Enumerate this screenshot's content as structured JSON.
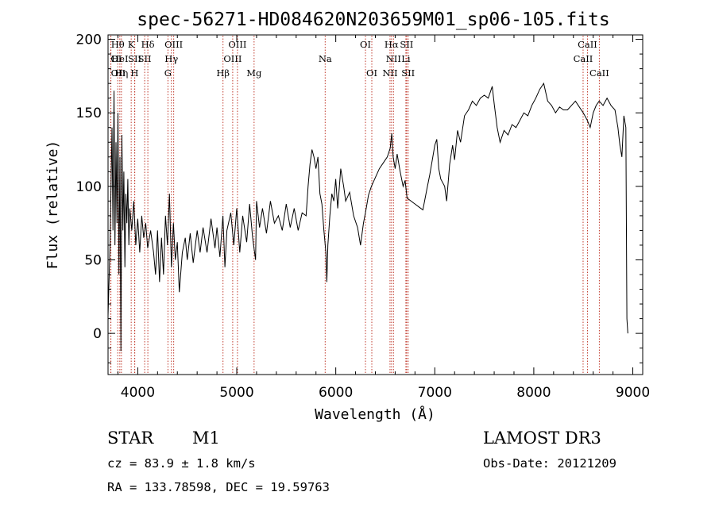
{
  "chart_data": {
    "type": "line",
    "title": "spec-56271-HD084620N203659M01_sp06-105.fits",
    "xlabel": "Wavelength (Å)",
    "ylabel": "Flux (relative)",
    "xlim": [
      3700,
      9100
    ],
    "ylim": [
      -28,
      203
    ],
    "x_ticks": [
      4000,
      5000,
      6000,
      7000,
      8000,
      9000
    ],
    "y_ticks": [
      0,
      50,
      100,
      150,
      200
    ],
    "grid": false,
    "series": [
      {
        "color": "#000000",
        "points": [
          [
            3700,
            12
          ],
          [
            3720,
            60
          ],
          [
            3740,
            140
          ],
          [
            3750,
            70
          ],
          [
            3760,
            165
          ],
          [
            3770,
            60
          ],
          [
            3780,
            130
          ],
          [
            3790,
            75
          ],
          [
            3800,
            150
          ],
          [
            3810,
            40
          ],
          [
            3820,
            120
          ],
          [
            3830,
            -12
          ],
          [
            3840,
            135
          ],
          [
            3850,
            70
          ],
          [
            3860,
            110
          ],
          [
            3870,
            45
          ],
          [
            3880,
            95
          ],
          [
            3890,
            75
          ],
          [
            3900,
            105
          ],
          [
            3910,
            60
          ],
          [
            3920,
            85
          ],
          [
            3940,
            70
          ],
          [
            3960,
            90
          ],
          [
            3980,
            60
          ],
          [
            4000,
            78
          ],
          [
            4020,
            55
          ],
          [
            4040,
            80
          ],
          [
            4060,
            65
          ],
          [
            4080,
            75
          ],
          [
            4100,
            58
          ],
          [
            4130,
            70
          ],
          [
            4160,
            55
          ],
          [
            4180,
            40
          ],
          [
            4200,
            70
          ],
          [
            4220,
            35
          ],
          [
            4240,
            65
          ],
          [
            4260,
            40
          ],
          [
            4280,
            80
          ],
          [
            4300,
            60
          ],
          [
            4320,
            95
          ],
          [
            4340,
            45
          ],
          [
            4360,
            75
          ],
          [
            4380,
            50
          ],
          [
            4400,
            62
          ],
          [
            4420,
            28
          ],
          [
            4450,
            55
          ],
          [
            4480,
            65
          ],
          [
            4500,
            50
          ],
          [
            4530,
            68
          ],
          [
            4560,
            48
          ],
          [
            4600,
            70
          ],
          [
            4630,
            55
          ],
          [
            4660,
            72
          ],
          [
            4700,
            55
          ],
          [
            4740,
            78
          ],
          [
            4780,
            58
          ],
          [
            4800,
            72
          ],
          [
            4830,
            52
          ],
          [
            4860,
            80
          ],
          [
            4880,
            45
          ],
          [
            4900,
            70
          ],
          [
            4940,
            82
          ],
          [
            4970,
            60
          ],
          [
            5000,
            85
          ],
          [
            5030,
            55
          ],
          [
            5060,
            80
          ],
          [
            5100,
            62
          ],
          [
            5130,
            88
          ],
          [
            5160,
            65
          ],
          [
            5190,
            50
          ],
          [
            5200,
            90
          ],
          [
            5230,
            72
          ],
          [
            5260,
            85
          ],
          [
            5300,
            68
          ],
          [
            5340,
            90
          ],
          [
            5380,
            75
          ],
          [
            5420,
            80
          ],
          [
            5460,
            70
          ],
          [
            5500,
            88
          ],
          [
            5540,
            72
          ],
          [
            5580,
            85
          ],
          [
            5620,
            70
          ],
          [
            5660,
            82
          ],
          [
            5700,
            80
          ],
          [
            5720,
            100
          ],
          [
            5740,
            115
          ],
          [
            5760,
            125
          ],
          [
            5780,
            120
          ],
          [
            5800,
            112
          ],
          [
            5820,
            120
          ],
          [
            5840,
            95
          ],
          [
            5860,
            88
          ],
          [
            5880,
            70
          ],
          [
            5900,
            55
          ],
          [
            5910,
            35
          ],
          [
            5920,
            60
          ],
          [
            5940,
            80
          ],
          [
            5960,
            95
          ],
          [
            5980,
            90
          ],
          [
            6000,
            105
          ],
          [
            6020,
            85
          ],
          [
            6050,
            112
          ],
          [
            6080,
            100
          ],
          [
            6100,
            90
          ],
          [
            6140,
            96
          ],
          [
            6180,
            80
          ],
          [
            6220,
            72
          ],
          [
            6250,
            60
          ],
          [
            6280,
            75
          ],
          [
            6300,
            82
          ],
          [
            6330,
            94
          ],
          [
            6360,
            100
          ],
          [
            6400,
            106
          ],
          [
            6440,
            112
          ],
          [
            6480,
            116
          ],
          [
            6520,
            120
          ],
          [
            6550,
            126
          ],
          [
            6565,
            136
          ],
          [
            6580,
            120
          ],
          [
            6600,
            112
          ],
          [
            6620,
            122
          ],
          [
            6650,
            110
          ],
          [
            6680,
            100
          ],
          [
            6700,
            104
          ],
          [
            6720,
            92
          ],
          [
            6760,
            90
          ],
          [
            6800,
            88
          ],
          [
            6840,
            86
          ],
          [
            6880,
            84
          ],
          [
            6920,
            98
          ],
          [
            6950,
            108
          ],
          [
            6980,
            120
          ],
          [
            7000,
            128
          ],
          [
            7020,
            132
          ],
          [
            7040,
            112
          ],
          [
            7060,
            105
          ],
          [
            7100,
            100
          ],
          [
            7120,
            90
          ],
          [
            7150,
            115
          ],
          [
            7180,
            128
          ],
          [
            7200,
            118
          ],
          [
            7230,
            138
          ],
          [
            7260,
            130
          ],
          [
            7300,
            148
          ],
          [
            7340,
            152
          ],
          [
            7380,
            158
          ],
          [
            7420,
            155
          ],
          [
            7460,
            160
          ],
          [
            7500,
            162
          ],
          [
            7540,
            160
          ],
          [
            7580,
            168
          ],
          [
            7600,
            156
          ],
          [
            7630,
            140
          ],
          [
            7660,
            130
          ],
          [
            7700,
            138
          ],
          [
            7740,
            135
          ],
          [
            7780,
            142
          ],
          [
            7820,
            140
          ],
          [
            7860,
            145
          ],
          [
            7900,
            150
          ],
          [
            7940,
            148
          ],
          [
            7980,
            155
          ],
          [
            8020,
            160
          ],
          [
            8060,
            166
          ],
          [
            8100,
            170
          ],
          [
            8140,
            158
          ],
          [
            8180,
            155
          ],
          [
            8220,
            150
          ],
          [
            8260,
            154
          ],
          [
            8300,
            152
          ],
          [
            8340,
            152
          ],
          [
            8380,
            155
          ],
          [
            8420,
            158
          ],
          [
            8460,
            154
          ],
          [
            8500,
            150
          ],
          [
            8540,
            145
          ],
          [
            8570,
            140
          ],
          [
            8600,
            150
          ],
          [
            8630,
            155
          ],
          [
            8660,
            158
          ],
          [
            8700,
            155
          ],
          [
            8740,
            160
          ],
          [
            8780,
            155
          ],
          [
            8820,
            152
          ],
          [
            8850,
            140
          ],
          [
            8870,
            128
          ],
          [
            8890,
            120
          ],
          [
            8910,
            148
          ],
          [
            8930,
            140
          ],
          [
            8940,
            10
          ],
          [
            8950,
            0
          ]
        ]
      }
    ]
  },
  "lines": [
    {
      "label": "OI",
      "x": 3727,
      "row": 2,
      "align": "start"
    },
    {
      "label": "OII",
      "x": 3729,
      "row": 3,
      "align": "start"
    },
    {
      "label": "Hθ",
      "x": 3798,
      "row": 1,
      "align": "middle"
    },
    {
      "label": "HeI",
      "x": 3819,
      "row": 2,
      "align": "middle"
    },
    {
      "label": "Hη",
      "x": 3835,
      "row": 3,
      "align": "middle"
    },
    {
      "label": "K",
      "x": 3934,
      "row": 1,
      "align": "middle"
    },
    {
      "label": "SII",
      "x": 3970,
      "row": 2,
      "align": "middle"
    },
    {
      "label": "H",
      "x": 3968,
      "row": 3,
      "align": "middle"
    },
    {
      "label": "Hδ",
      "x": 4102,
      "row": 1,
      "align": "middle"
    },
    {
      "label": "SII",
      "x": 4070,
      "row": 2,
      "align": "middle"
    },
    {
      "label": "OIII",
      "x": 4363,
      "row": 1,
      "align": "middle"
    },
    {
      "label": "Hγ",
      "x": 4340,
      "row": 2,
      "align": "middle"
    },
    {
      "label": "G",
      "x": 4305,
      "row": 3,
      "align": "middle"
    },
    {
      "label": "Hβ",
      "x": 4861,
      "row": 3,
      "align": "middle"
    },
    {
      "label": "OIII",
      "x": 5007,
      "row": 1,
      "align": "middle"
    },
    {
      "label": "OIII",
      "x": 4959,
      "row": 2,
      "align": "middle"
    },
    {
      "label": "Mg",
      "x": 5175,
      "row": 3,
      "align": "middle"
    },
    {
      "label": "Na",
      "x": 5893,
      "row": 2,
      "align": "middle"
    },
    {
      "label": "OI",
      "x": 6300,
      "row": 1,
      "align": "middle"
    },
    {
      "label": "OI",
      "x": 6364,
      "row": 3,
      "align": "middle"
    },
    {
      "label": "Hα",
      "x": 6563,
      "row": 1,
      "align": "middle"
    },
    {
      "label": "SII",
      "x": 6716,
      "row": 1,
      "align": "middle"
    },
    {
      "label": "NII",
      "x": 6583,
      "row": 2,
      "align": "middle"
    },
    {
      "label": "Li",
      "x": 6708,
      "row": 2,
      "align": "middle"
    },
    {
      "label": "NII",
      "x": 6548,
      "row": 3,
      "align": "middle"
    },
    {
      "label": "SII",
      "x": 6731,
      "row": 3,
      "align": "middle"
    },
    {
      "label": "CaII",
      "x": 8542,
      "row": 1,
      "align": "middle"
    },
    {
      "label": "CaII",
      "x": 8498,
      "row": 2,
      "align": "middle"
    },
    {
      "label": "CaII",
      "x": 8662,
      "row": 3,
      "align": "middle"
    }
  ],
  "info": {
    "object_class": "STAR",
    "subclass": "M1",
    "survey": "LAMOST DR3",
    "cz": "cz = 83.9 ± 1.8 km/s",
    "obs_date": "Obs-Date: 20121209",
    "coords": "RA = 133.78598, DEC =  19.59763"
  },
  "colors": {
    "line_marker": "#c0392b",
    "spectrum": "#000000",
    "axis": "#000000"
  }
}
